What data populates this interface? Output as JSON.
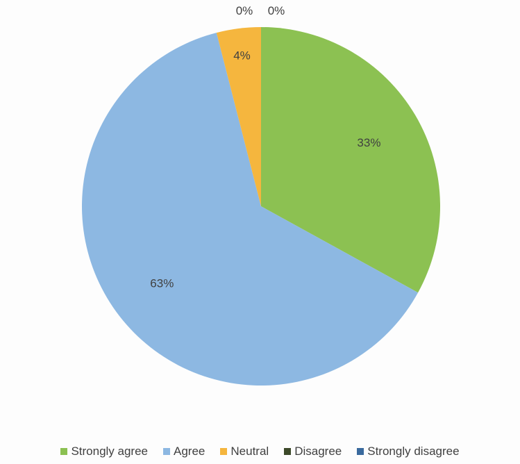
{
  "chart_data": {
    "type": "pie",
    "categories": [
      "Strongly agree",
      "Agree",
      "Neutral",
      "Disagree",
      "Strongly disagree"
    ],
    "values": [
      33,
      63,
      4,
      0,
      0
    ],
    "data_labels": [
      "33%",
      "63%",
      "4%",
      "0%",
      "0%"
    ],
    "colors": [
      "#8cc152",
      "#8db8e2",
      "#f5b63e",
      "#3d4a2a",
      "#3a6a9e"
    ],
    "legend_position": "bottom"
  }
}
